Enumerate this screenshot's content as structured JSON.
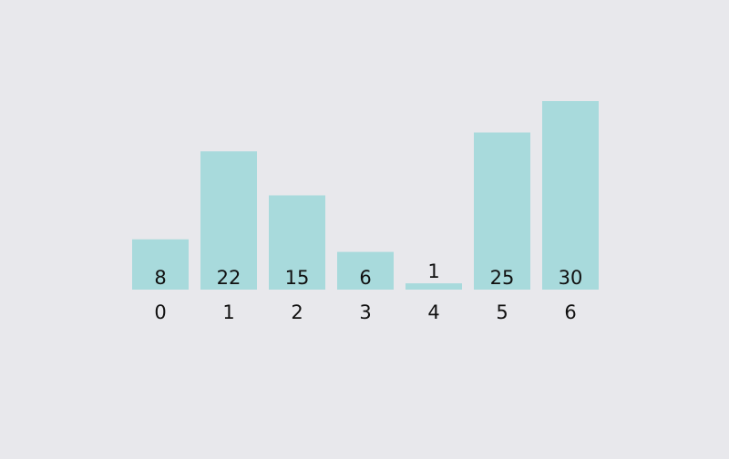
{
  "chart_data": {
    "type": "bar",
    "categories": [
      "0",
      "1",
      "2",
      "3",
      "4",
      "5",
      "6"
    ],
    "values": [
      8,
      22,
      15,
      6,
      1,
      25,
      30
    ],
    "ylim": [
      0,
      30
    ],
    "grid": false,
    "bar_color": "#a8dadc",
    "background_color": "#e8e8ec",
    "text_color": "#111111"
  }
}
